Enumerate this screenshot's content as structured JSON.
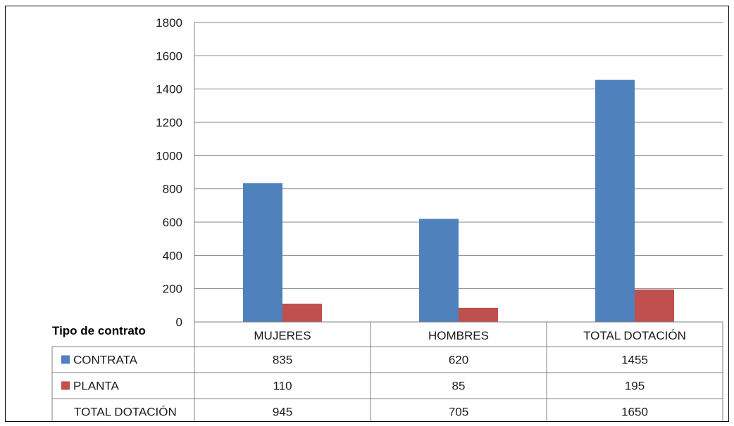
{
  "chart_data": {
    "type": "bar",
    "categories": [
      "MUJERES",
      "HOMBRES",
      "TOTAL DOTACIÓN"
    ],
    "series": [
      {
        "name": "CONTRATA",
        "values": [
          835,
          620,
          1455
        ],
        "color": "#4f81bd"
      },
      {
        "name": "PLANTA",
        "values": [
          110,
          85,
          195
        ],
        "color": "#c0504d"
      }
    ],
    "ylim": [
      0,
      1800
    ],
    "yticks": [
      0,
      200,
      400,
      600,
      800,
      1000,
      1200,
      1400,
      1600,
      1800
    ],
    "grid": true,
    "data_table": {
      "header_label": "Tipo de contrato",
      "rows": [
        {
          "label": "CONTRATA",
          "values": [
            "835",
            "620",
            "1455"
          ],
          "legend_key": true
        },
        {
          "label": "PLANTA",
          "values": [
            "110",
            "85",
            "195"
          ],
          "legend_key": true
        },
        {
          "label": "TOTAL DOTACIÓN",
          "values": [
            "945",
            "705",
            "1650"
          ],
          "legend_key": false
        }
      ]
    }
  }
}
